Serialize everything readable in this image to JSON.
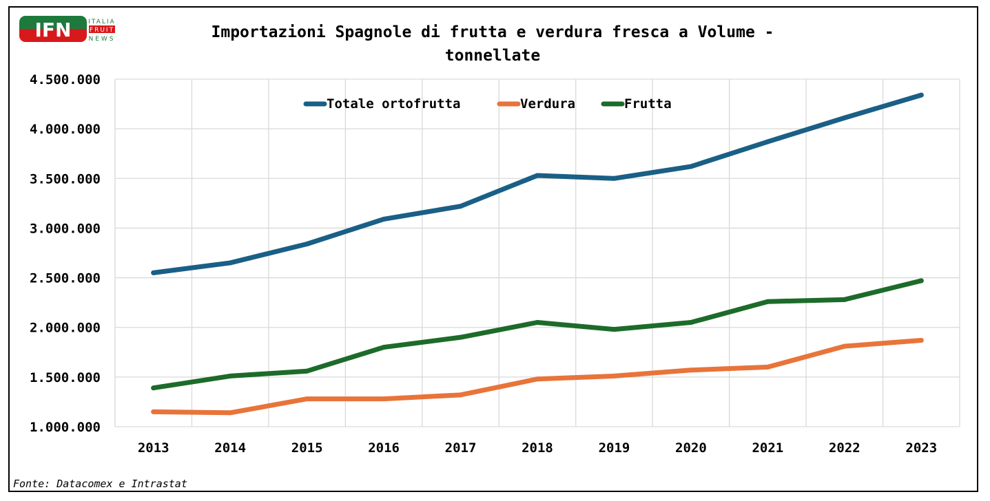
{
  "logo": {
    "mark": "IFN",
    "line1": "ITALIA",
    "line2": "FRUIT",
    "line3": "NEWS",
    "colors": {
      "green": "#1e7a3c",
      "red": "#d7191c"
    }
  },
  "source_note": "Fonte: Datacomex e Intrastat",
  "chart_data": {
    "type": "line",
    "title": "Importazioni Spagnole di frutta e verdura fresca a Volume -",
    "title_line2": "tonnellate",
    "xlabel": "",
    "ylabel": "",
    "categories": [
      "2013",
      "2014",
      "2015",
      "2016",
      "2017",
      "2018",
      "2019",
      "2020",
      "2021",
      "2022",
      "2023"
    ],
    "ylim": [
      1000000,
      4500000
    ],
    "yticks": [
      1000000,
      1500000,
      2000000,
      2500000,
      3000000,
      3500000,
      4000000,
      4500000
    ],
    "ytick_labels": [
      "1.000.000",
      "1.500.000",
      "2.000.000",
      "2.500.000",
      "3.000.000",
      "3.500.000",
      "4.000.000",
      "4.500.000"
    ],
    "grid": true,
    "legend_position": "top-center",
    "series": [
      {
        "name": "Totale ortofrutta",
        "color": "#1a5f86",
        "values": [
          2550000,
          2650000,
          2840000,
          3090000,
          3220000,
          3530000,
          3500000,
          3620000,
          3870000,
          4110000,
          4340000
        ]
      },
      {
        "name": "Verdura",
        "color": "#e8743a",
        "values": [
          1150000,
          1140000,
          1280000,
          1280000,
          1320000,
          1480000,
          1510000,
          1570000,
          1600000,
          1810000,
          1870000
        ]
      },
      {
        "name": "Frutta",
        "color": "#1d6b2a",
        "values": [
          1390000,
          1510000,
          1560000,
          1800000,
          1900000,
          2050000,
          1980000,
          2050000,
          2260000,
          2280000,
          2470000
        ]
      }
    ]
  }
}
